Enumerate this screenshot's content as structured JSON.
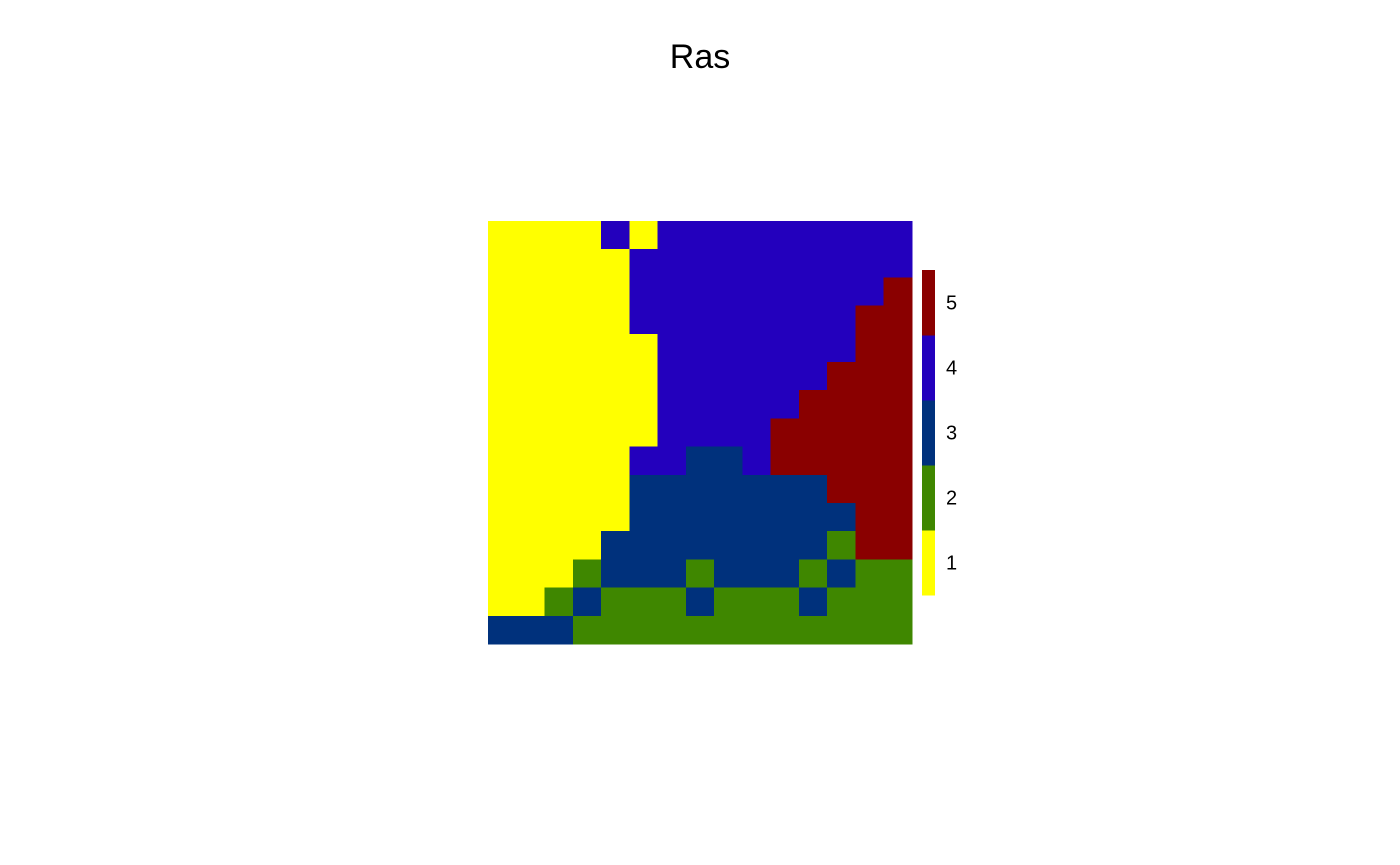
{
  "chart_data": {
    "type": "heatmap",
    "title": "Ras",
    "legend": {
      "position": "right",
      "levels": [
        {
          "value": 1,
          "label": "1",
          "color": "#FFFF00"
        },
        {
          "value": 2,
          "label": "2",
          "color": "#3F8700"
        },
        {
          "value": 3,
          "label": "3",
          "color": "#00317C"
        },
        {
          "value": 4,
          "label": "4",
          "color": "#2300BD"
        },
        {
          "value": 5,
          "label": "5",
          "color": "#8A0000"
        }
      ]
    },
    "grid": [
      [
        1,
        1,
        1,
        1,
        4,
        1,
        4,
        4,
        4,
        4,
        4,
        4,
        4,
        4,
        4
      ],
      [
        1,
        1,
        1,
        1,
        1,
        4,
        4,
        4,
        4,
        4,
        4,
        4,
        4,
        4,
        4
      ],
      [
        1,
        1,
        1,
        1,
        1,
        4,
        4,
        4,
        4,
        4,
        4,
        4,
        4,
        4,
        5
      ],
      [
        1,
        1,
        1,
        1,
        1,
        4,
        4,
        4,
        4,
        4,
        4,
        4,
        4,
        5,
        5
      ],
      [
        1,
        1,
        1,
        1,
        1,
        1,
        4,
        4,
        4,
        4,
        4,
        4,
        4,
        5,
        5
      ],
      [
        1,
        1,
        1,
        1,
        1,
        1,
        4,
        4,
        4,
        4,
        4,
        4,
        5,
        5,
        5
      ],
      [
        1,
        1,
        1,
        1,
        1,
        1,
        4,
        4,
        4,
        4,
        4,
        5,
        5,
        5,
        5
      ],
      [
        1,
        1,
        1,
        1,
        1,
        1,
        4,
        4,
        4,
        4,
        5,
        5,
        5,
        5,
        5
      ],
      [
        1,
        1,
        1,
        1,
        1,
        4,
        4,
        3,
        3,
        4,
        5,
        5,
        5,
        5,
        5
      ],
      [
        1,
        1,
        1,
        1,
        1,
        3,
        3,
        3,
        3,
        3,
        3,
        3,
        5,
        5,
        5
      ],
      [
        1,
        1,
        1,
        1,
        1,
        3,
        3,
        3,
        3,
        3,
        3,
        3,
        3,
        5,
        5
      ],
      [
        1,
        1,
        1,
        1,
        3,
        3,
        3,
        3,
        3,
        3,
        3,
        3,
        2,
        5,
        5
      ],
      [
        1,
        1,
        1,
        2,
        3,
        3,
        3,
        2,
        3,
        3,
        3,
        2,
        3,
        2,
        2
      ],
      [
        1,
        1,
        2,
        3,
        2,
        2,
        2,
        3,
        2,
        2,
        2,
        3,
        2,
        2,
        2
      ],
      [
        3,
        3,
        3,
        2,
        2,
        2,
        2,
        2,
        2,
        2,
        2,
        2,
        2,
        2,
        2
      ]
    ]
  }
}
